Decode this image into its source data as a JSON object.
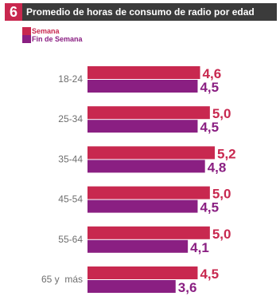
{
  "header": {
    "number": "6",
    "title": "Promedio de horas de consumo de radio por edad"
  },
  "colors": {
    "semana": "#c8284f",
    "fin_de_semana": "#8a1f82",
    "header_bg": "#3b3b3b"
  },
  "chart_data": {
    "type": "bar",
    "orientation": "horizontal",
    "title": "Promedio de horas de consumo de radio por edad",
    "categories": [
      "18-24",
      "25-34",
      "35-44",
      "45-54",
      "55-64",
      "65 y  más"
    ],
    "series": [
      {
        "name": "Semana",
        "values": [
          4.6,
          5.0,
          5.2,
          5.0,
          5.0,
          4.5
        ],
        "labels": [
          "4,6",
          "5,0",
          "5,2",
          "5,0",
          "5,0",
          "4,5"
        ]
      },
      {
        "name": "Fin de Semana",
        "values": [
          4.5,
          4.5,
          4.8,
          4.5,
          4.1,
          3.6
        ],
        "labels": [
          "4,5",
          "4,5",
          "4,8",
          "4,5",
          "4,1",
          "3,6"
        ]
      }
    ],
    "legend": "top-left",
    "grid": false
  }
}
